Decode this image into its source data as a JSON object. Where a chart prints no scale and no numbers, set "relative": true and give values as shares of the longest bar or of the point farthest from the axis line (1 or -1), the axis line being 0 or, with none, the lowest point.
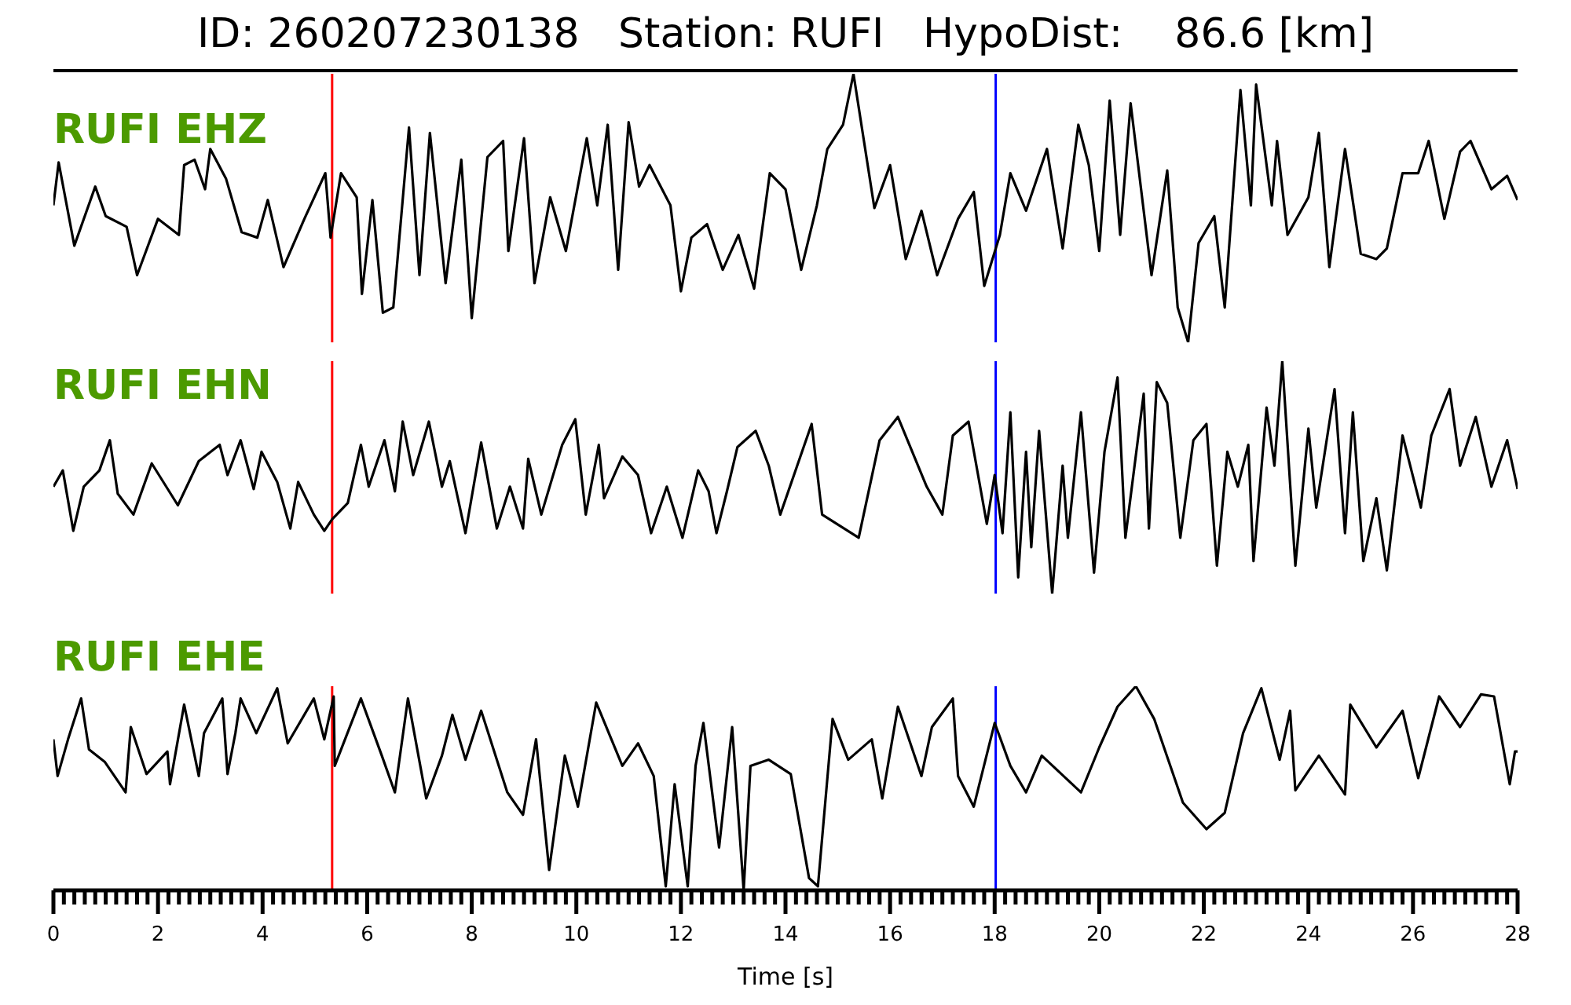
{
  "chart_data": [
    {
      "type": "line",
      "title": "ID: 260207230138   Station: RUFI   HypoDist:    86.6 [km]",
      "relative": true,
      "xlim": [
        0,
        28
      ],
      "tick_labels": false,
      "ref_lines": [
        {
          "axis": "x",
          "value": 5.33,
          "color": "#ff0000"
        },
        {
          "axis": "x",
          "value": 18.02,
          "color": "#0000ff"
        }
      ],
      "series": [
        {
          "name": "RUFI EHZ",
          "color": "#000000",
          "x": [
            0.0,
            0.1,
            0.4,
            0.8,
            1.0,
            1.4,
            1.6,
            2.0,
            2.4,
            2.5,
            2.7,
            2.9,
            3.0,
            3.3,
            3.6,
            3.9,
            4.1,
            4.4,
            4.8,
            5.2,
            5.3,
            5.5,
            5.8,
            5.9,
            6.1,
            6.3,
            6.5,
            6.8,
            7.0,
            7.2,
            7.5,
            7.8,
            8.0,
            8.3,
            8.6,
            8.7,
            9.0,
            9.2,
            9.5,
            9.8,
            10.2,
            10.4,
            10.6,
            10.8,
            11.0,
            11.2,
            11.4,
            11.8,
            12.0,
            12.2,
            12.5,
            12.8,
            13.1,
            13.4,
            13.7,
            14.0,
            14.3,
            14.6,
            14.8,
            15.1,
            15.3,
            15.5,
            15.7,
            16.0,
            16.3,
            16.6,
            16.9,
            17.3,
            17.6,
            17.8,
            18.1,
            18.3,
            18.6,
            19.0,
            19.3,
            19.6,
            19.8,
            20.0,
            20.2,
            20.4,
            20.6,
            21.0,
            21.3,
            21.5,
            21.7,
            21.9,
            22.2,
            22.4,
            22.7,
            22.9,
            23.0,
            23.3,
            23.4,
            23.6,
            24.0,
            24.2,
            24.4,
            24.7,
            25.0,
            25.3,
            25.5,
            25.8,
            26.1,
            26.3,
            26.6,
            26.9,
            27.1,
            27.5,
            27.8,
            28.0
          ],
          "values": [
            0.51,
            0.67,
            0.36,
            0.58,
            0.47,
            0.43,
            0.25,
            0.46,
            0.4,
            0.66,
            0.68,
            0.57,
            0.72,
            0.61,
            0.41,
            0.39,
            0.53,
            0.28,
            0.46,
            0.63,
            0.39,
            0.63,
            0.54,
            0.18,
            0.53,
            0.11,
            0.13,
            0.8,
            0.25,
            0.78,
            0.22,
            0.68,
            0.09,
            0.69,
            0.75,
            0.34,
            0.76,
            0.22,
            0.54,
            0.34,
            0.76,
            0.51,
            0.81,
            0.27,
            0.82,
            0.58,
            0.66,
            0.51,
            0.19,
            0.39,
            0.44,
            0.27,
            0.4,
            0.2,
            0.63,
            0.57,
            0.27,
            0.51,
            0.72,
            0.81,
            1,
            0.75,
            0.5,
            0.66,
            0.31,
            0.49,
            0.25,
            0.46,
            0.56,
            0.21,
            0.4,
            0.63,
            0.49,
            0.72,
            0.35,
            0.81,
            0.66,
            0.34,
            0.9,
            0.4,
            0.89,
            0.25,
            0.64,
            0.13,
            0,
            0.37,
            0.47,
            0.13,
            0.94,
            0.51,
            0.96,
            0.51,
            0.75,
            0.4,
            0.54,
            0.78,
            0.28,
            0.72,
            0.33,
            0.31,
            0.35,
            0.63,
            0.63,
            0.75,
            0.46,
            0.71,
            0.75,
            0.57,
            0.62,
            0.53
          ]
        }
      ]
    },
    {
      "type": "line",
      "relative": true,
      "xlim": [
        0,
        28
      ],
      "tick_labels": false,
      "ref_lines": [
        {
          "axis": "x",
          "value": 5.33,
          "color": "#ff0000"
        },
        {
          "axis": "x",
          "value": 18.02,
          "color": "#0000ff"
        }
      ],
      "series": [
        {
          "name": "RUFI EHN",
          "color": "#000000",
          "x": [
            0,
            0.18,
            0.38,
            0.58,
            0.88,
            1.08,
            1.23,
            1.53,
            1.88,
            2.38,
            2.78,
            3.18,
            3.33,
            3.58,
            3.83,
            3.98,
            4.28,
            4.53,
            4.68,
            4.98,
            5.18,
            5.33,
            5.63,
            5.88,
            6.03,
            6.33,
            6.53,
            6.68,
            6.88,
            7.18,
            7.43,
            7.58,
            7.88,
            8.18,
            8.48,
            8.73,
            8.98,
            9.08,
            9.33,
            9.73,
            9.98,
            10.18,
            10.43,
            10.53,
            10.88,
            11.18,
            11.43,
            11.73,
            12.03,
            12.33,
            12.53,
            12.68,
            12.88,
            13.08,
            13.43,
            13.68,
            13.9,
            14.5,
            14.7,
            15.4,
            15.8,
            16.15,
            16.7,
            17.0,
            17.2,
            17.5,
            17.85,
            18.0,
            18.15,
            18.3,
            18.45,
            18.6,
            18.7,
            18.85,
            19.1,
            19.3,
            19.4,
            19.65,
            19.9,
            20.1,
            20.35,
            20.5,
            20.85,
            20.95,
            21.1,
            21.3,
            21.55,
            21.8,
            22.05,
            22.25,
            22.45,
            22.65,
            22.85,
            22.95,
            23.2,
            23.35,
            23.5,
            23.75,
            24.0,
            24.15,
            24.5,
            24.7,
            24.85,
            25.05,
            25.3,
            25.5,
            25.8,
            26.15,
            26.35,
            26.7,
            26.9,
            27.2,
            27.5,
            27.8,
            28.0
          ],
          "values": [
            0.46,
            0.53,
            0.27,
            0.46,
            0.53,
            0.66,
            0.43,
            0.34,
            0.56,
            0.38,
            0.57,
            0.64,
            0.51,
            0.66,
            0.45,
            0.61,
            0.48,
            0.28,
            0.48,
            0.34,
            0.27,
            0.32,
            0.39,
            0.64,
            0.46,
            0.66,
            0.44,
            0.74,
            0.51,
            0.74,
            0.46,
            0.57,
            0.26,
            0.65,
            0.28,
            0.46,
            0.28,
            0.58,
            0.34,
            0.64,
            0.75,
            0.34,
            0.64,
            0.41,
            0.59,
            0.51,
            0.26,
            0.46,
            0.24,
            0.53,
            0.44,
            0.26,
            0.44,
            0.63,
            0.7,
            0.55,
            0.34,
            0.73,
            0.34,
            0.24,
            0.66,
            0.76,
            0.46,
            0.34,
            0.68,
            0.74,
            0.3,
            0.51,
            0.26,
            0.78,
            0.07,
            0.61,
            0.2,
            0.7,
            0,
            0.55,
            0.24,
            0.78,
            0.09,
            0.61,
            0.93,
            0.24,
            0.86,
            0.28,
            0.91,
            0.82,
            0.24,
            0.66,
            0.73,
            0.12,
            0.61,
            0.46,
            0.64,
            0.14,
            0.8,
            0.55,
            1,
            0.12,
            0.71,
            0.37,
            0.88,
            0.26,
            0.78,
            0.14,
            0.41,
            0.1,
            0.68,
            0.37,
            0.68,
            0.88,
            0.55,
            0.76,
            0.46,
            0.66,
            0.45
          ]
        }
      ]
    },
    {
      "type": "line",
      "relative": true,
      "xlim": [
        0,
        28
      ],
      "tick_labels": "x",
      "xlabel": "Time [s]",
      "xticks": [
        0,
        {
          "value": 0.2,
          "label": null
        },
        {
          "value": 0.4,
          "label": null
        },
        {
          "value": 0.6,
          "label": null
        },
        {
          "value": 0.8,
          "label": null
        },
        {
          "value": 1,
          "label": null
        },
        {
          "value": 1.2,
          "label": null
        },
        {
          "value": 1.4,
          "label": null
        },
        {
          "value": 1.6,
          "label": null
        },
        {
          "value": 1.8,
          "label": null
        },
        2,
        {
          "value": 2.2,
          "label": null
        },
        {
          "value": 2.4,
          "label": null
        },
        {
          "value": 2.6,
          "label": null
        },
        {
          "value": 2.8,
          "label": null
        },
        {
          "value": 3,
          "label": null
        },
        {
          "value": 3.2,
          "label": null
        },
        {
          "value": 3.4,
          "label": null
        },
        {
          "value": 3.6,
          "label": null
        },
        {
          "value": 3.8,
          "label": null
        },
        4,
        {
          "value": 4.2,
          "label": null
        },
        {
          "value": 4.4,
          "label": null
        },
        {
          "value": 4.6,
          "label": null
        },
        {
          "value": 4.8,
          "label": null
        },
        {
          "value": 5,
          "label": null
        },
        {
          "value": 5.2,
          "label": null
        },
        {
          "value": 5.4,
          "label": null
        },
        {
          "value": 5.6,
          "label": null
        },
        {
          "value": 5.8,
          "label": null
        },
        6,
        {
          "value": 6.2,
          "label": null
        },
        {
          "value": 6.4,
          "label": null
        },
        {
          "value": 6.6,
          "label": null
        },
        {
          "value": 6.8,
          "label": null
        },
        {
          "value": 7,
          "label": null
        },
        {
          "value": 7.2,
          "label": null
        },
        {
          "value": 7.4,
          "label": null
        },
        {
          "value": 7.6,
          "label": null
        },
        {
          "value": 7.8,
          "label": null
        },
        8,
        {
          "value": 8.2,
          "label": null
        },
        {
          "value": 8.4,
          "label": null
        },
        {
          "value": 8.6,
          "label": null
        },
        {
          "value": 8.8,
          "label": null
        },
        {
          "value": 9,
          "label": null
        },
        {
          "value": 9.2,
          "label": null
        },
        {
          "value": 9.4,
          "label": null
        },
        {
          "value": 9.6,
          "label": null
        },
        {
          "value": 9.8,
          "label": null
        },
        10,
        {
          "value": 10.2,
          "label": null
        },
        {
          "value": 10.4,
          "label": null
        },
        {
          "value": 10.6,
          "label": null
        },
        {
          "value": 10.8,
          "label": null
        },
        {
          "value": 11,
          "label": null
        },
        {
          "value": 11.2,
          "label": null
        },
        {
          "value": 11.4,
          "label": null
        },
        {
          "value": 11.6,
          "label": null
        },
        {
          "value": 11.8,
          "label": null
        },
        12,
        {
          "value": 12.2,
          "label": null
        },
        {
          "value": 12.4,
          "label": null
        },
        {
          "value": 12.6,
          "label": null
        },
        {
          "value": 12.8,
          "label": null
        },
        {
          "value": 13,
          "label": null
        },
        {
          "value": 13.2,
          "label": null
        },
        {
          "value": 13.4,
          "label": null
        },
        {
          "value": 13.6,
          "label": null
        },
        {
          "value": 13.8,
          "label": null
        },
        14,
        {
          "value": 14.2,
          "label": null
        },
        {
          "value": 14.4,
          "label": null
        },
        {
          "value": 14.6,
          "label": null
        },
        {
          "value": 14.8,
          "label": null
        },
        {
          "value": 15,
          "label": null
        },
        {
          "value": 15.2,
          "label": null
        },
        {
          "value": 15.4,
          "label": null
        },
        {
          "value": 15.6,
          "label": null
        },
        {
          "value": 15.8,
          "label": null
        },
        16,
        {
          "value": 16.2,
          "label": null
        },
        {
          "value": 16.4,
          "label": null
        },
        {
          "value": 16.6,
          "label": null
        },
        {
          "value": 16.8,
          "label": null
        },
        {
          "value": 17,
          "label": null
        },
        {
          "value": 17.2,
          "label": null
        },
        {
          "value": 17.4,
          "label": null
        },
        {
          "value": 17.6,
          "label": null
        },
        {
          "value": 17.8,
          "label": null
        },
        18,
        {
          "value": 18.2,
          "label": null
        },
        {
          "value": 18.4,
          "label": null
        },
        {
          "value": 18.6,
          "label": null
        },
        {
          "value": 18.8,
          "label": null
        },
        {
          "value": 19,
          "label": null
        },
        {
          "value": 19.2,
          "label": null
        },
        {
          "value": 19.4,
          "label": null
        },
        {
          "value": 19.6,
          "label": null
        },
        {
          "value": 19.8,
          "label": null
        },
        20,
        {
          "value": 20.2,
          "label": null
        },
        {
          "value": 20.4,
          "label": null
        },
        {
          "value": 20.6,
          "label": null
        },
        {
          "value": 20.8,
          "label": null
        },
        {
          "value": 21,
          "label": null
        },
        {
          "value": 21.2,
          "label": null
        },
        {
          "value": 21.4,
          "label": null
        },
        {
          "value": 21.6,
          "label": null
        },
        {
          "value": 21.8,
          "label": null
        },
        22,
        {
          "value": 22.2,
          "label": null
        },
        {
          "value": 22.4,
          "label": null
        },
        {
          "value": 22.6,
          "label": null
        },
        {
          "value": 22.8,
          "label": null
        },
        {
          "value": 23,
          "label": null
        },
        {
          "value": 23.2,
          "label": null
        },
        {
          "value": 23.4,
          "label": null
        },
        {
          "value": 23.6,
          "label": null
        },
        {
          "value": 23.8,
          "label": null
        },
        24,
        {
          "value": 24.2,
          "label": null
        },
        {
          "value": 24.4,
          "label": null
        },
        {
          "value": 24.6,
          "label": null
        },
        {
          "value": 24.8,
          "label": null
        },
        {
          "value": 25,
          "label": null
        },
        {
          "value": 25.2,
          "label": null
        },
        {
          "value": 25.4,
          "label": null
        },
        {
          "value": 25.6,
          "label": null
        },
        {
          "value": 25.8,
          "label": null
        },
        26,
        {
          "value": 26.2,
          "label": null
        },
        {
          "value": 26.4,
          "label": null
        },
        {
          "value": 26.6,
          "label": null
        },
        {
          "value": 26.8,
          "label": null
        },
        {
          "value": 27,
          "label": null
        },
        {
          "value": 27.2,
          "label": null
        },
        {
          "value": 27.4,
          "label": null
        },
        {
          "value": 27.6,
          "label": null
        },
        {
          "value": 27.8,
          "label": null
        },
        28
      ],
      "ref_lines": [
        {
          "axis": "x",
          "value": 5.33,
          "color": "#ff0000"
        },
        {
          "axis": "x",
          "value": 18.02,
          "color": "#0000ff"
        }
      ],
      "series": [
        {
          "name": "RUFI EHE",
          "color": "#000000",
          "x": [
            0,
            0.08,
            0.28,
            0.53,
            0.68,
            0.98,
            1.38,
            1.48,
            1.78,
            2.18,
            2.23,
            2.5,
            2.78,
            2.88,
            3.23,
            3.33,
            3.48,
            3.58,
            3.88,
            4.28,
            4.48,
            4.98,
            5.18,
            5.36,
            5.38,
            5.88,
            6.28,
            6.53,
            6.78,
            7.13,
            7.43,
            7.63,
            7.88,
            8.18,
            8.68,
            8.98,
            9.23,
            9.48,
            9.78,
            10.03,
            10.38,
            10.88,
            11.18,
            11.48,
            11.71,
            11.88,
            12.13,
            12.28,
            12.43,
            12.73,
            12.98,
            13.2,
            13.33,
            13.68,
            14.1,
            14.45,
            14.62,
            14.9,
            15.2,
            15.65,
            15.85,
            16.15,
            16.6,
            16.8,
            17.2,
            17.3,
            17.6,
            18.0,
            18.3,
            18.6,
            18.9,
            19.65,
            20.0,
            20.35,
            20.7,
            21.05,
            21.6,
            22.05,
            22.4,
            22.75,
            23.1,
            23.45,
            23.65,
            23.75,
            24.2,
            24.7,
            24.8,
            25.3,
            25.8,
            26.1,
            26.5,
            26.9,
            27.3,
            27.55,
            27.85,
            27.95,
            28.0
          ],
          "values": [
            0.74,
            0.56,
            0.74,
            0.94,
            0.69,
            0.63,
            0.48,
            0.8,
            0.57,
            0.68,
            0.52,
            0.91,
            0.56,
            0.77,
            0.94,
            0.57,
            0.77,
            0.94,
            0.77,
            0.99,
            0.72,
            0.94,
            0.74,
            0.95,
            0.61,
            0.94,
            0.66,
            0.48,
            0.94,
            0.45,
            0.66,
            0.86,
            0.64,
            0.88,
            0.48,
            0.37,
            0.74,
            0.1,
            0.66,
            0.41,
            0.92,
            0.61,
            0.72,
            0.56,
            0.02,
            0.52,
            0.02,
            0.61,
            0.82,
            0.21,
            0.8,
            0,
            0.61,
            0.64,
            0.57,
            0.06,
            0.02,
            0.84,
            0.64,
            0.74,
            0.45,
            0.9,
            0.56,
            0.8,
            0.94,
            0.56,
            0.41,
            0.82,
            0.61,
            0.48,
            0.66,
            0.48,
            0.7,
            0.9,
            1,
            0.84,
            0.43,
            0.3,
            0.38,
            0.77,
            0.99,
            0.64,
            0.88,
            0.49,
            0.66,
            0.47,
            0.91,
            0.7,
            0.88,
            0.55,
            0.95,
            0.8,
            0.96,
            0.95,
            0.52,
            0.68,
            0.68
          ]
        }
      ]
    }
  ]
}
